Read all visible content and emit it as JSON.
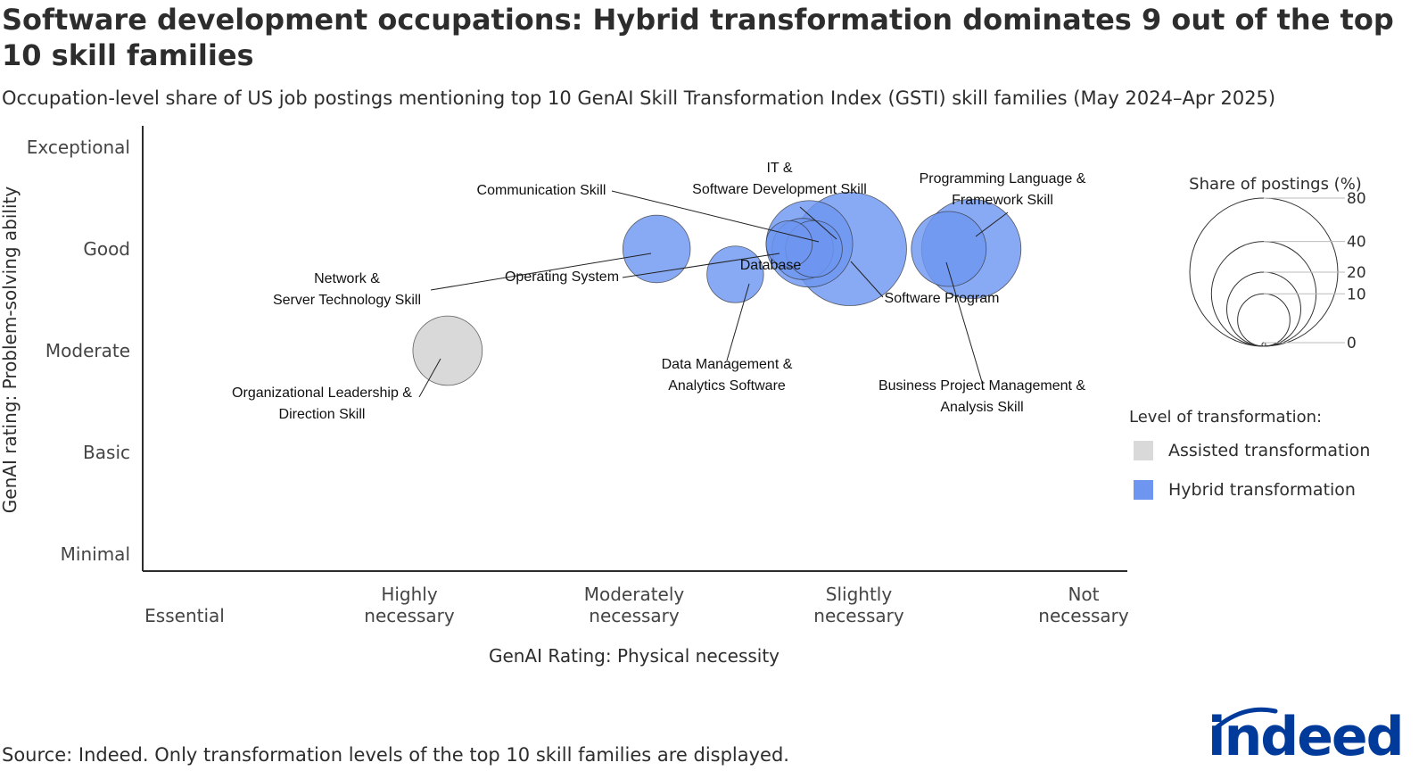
{
  "header": {
    "title": "Software development occupations: Hybrid transformation dominates 9 out of the top 10 skill families",
    "subtitle": "Occupation-level share of US job postings mentioning top 10 GenAI Skill Transformation Index (GSTI) skill families (May 2024–Apr 2025)"
  },
  "footer": {
    "source": "Source: Indeed. Only transformation levels of the top 10 skill families are displayed.",
    "logo_text": "indeed"
  },
  "colors": {
    "assisted": "#d9d9d9",
    "hybrid": "#6e96f0",
    "axis": "#2d2d2d",
    "logo": "#003a9b"
  },
  "chart_data": {
    "type": "scatter",
    "xlabel": "GenAI Rating: Physical necessity",
    "ylabel": "GenAI rating: Problem-solving ability",
    "x_ticks": [
      {
        "value": 1,
        "lines": [
          "Essential"
        ]
      },
      {
        "value": 2,
        "lines": [
          "Highly",
          "necessary"
        ]
      },
      {
        "value": 3,
        "lines": [
          "Moderately",
          "necessary"
        ]
      },
      {
        "value": 4,
        "lines": [
          "Slightly",
          "necessary"
        ]
      },
      {
        "value": 5,
        "lines": [
          "Not",
          "necessary"
        ]
      }
    ],
    "y_ticks": [
      {
        "value": 1,
        "label": "Minimal"
      },
      {
        "value": 2,
        "label": "Basic"
      },
      {
        "value": 3,
        "label": "Moderate"
      },
      {
        "value": 4,
        "label": "Good"
      },
      {
        "value": 5,
        "label": "Exceptional"
      }
    ],
    "xlim": [
      0.95,
      5.2
    ],
    "ylim": [
      0.8,
      5.2
    ],
    "points": [
      {
        "name": "Organizational Leadership & Direction Skill",
        "label_lines": [
          "Organizational Leadership &",
          "Direction Skill"
        ],
        "x": 2.17,
        "y": 3.0,
        "size": 18,
        "level": "Assisted transformation"
      },
      {
        "name": "Network & Server Technology Skill",
        "label_lines": [
          "Network &",
          "Server Technology Skill"
        ],
        "x": 3.1,
        "y": 4.0,
        "size": 17,
        "level": "Hybrid transformation"
      },
      {
        "name": "Data Management & Analytics Software",
        "label_lines": [
          "Data Management &",
          "Analytics Software"
        ],
        "x": 3.45,
        "y": 3.75,
        "size": 12,
        "level": "Hybrid transformation"
      },
      {
        "name": "Operating System",
        "label_lines": [
          "Operating System"
        ],
        "x": 3.69,
        "y": 4.05,
        "size": 8,
        "level": "Hybrid transformation"
      },
      {
        "name": "Communication Skill",
        "label_lines": [
          "Communication Skill"
        ],
        "x": 3.75,
        "y": 4.0,
        "size": 14,
        "level": "Hybrid transformation"
      },
      {
        "name": "Database",
        "label_lines": [
          "Database"
        ],
        "x": 3.8,
        "y": 4.0,
        "size": 12,
        "level": "Hybrid transformation"
      },
      {
        "name": "IT & Software Development Skill",
        "label_lines": [
          "IT &",
          "Software Development Skill"
        ],
        "x": 3.78,
        "y": 4.05,
        "size": 28,
        "level": "Hybrid transformation"
      },
      {
        "name": "Software Program",
        "label_lines": [
          "Software Program"
        ],
        "x": 3.96,
        "y": 4.0,
        "size": 48,
        "level": "Hybrid transformation"
      },
      {
        "name": "Business Project Management & Analysis Skill",
        "label_lines": [
          "Business Project Management &",
          "Analysis Skill"
        ],
        "x": 4.4,
        "y": 4.0,
        "size": 21,
        "level": "Hybrid transformation"
      },
      {
        "name": "Programming Language & Framework Skill",
        "label_lines": [
          "Programming Language &",
          "Framework Skill"
        ],
        "x": 4.5,
        "y": 4.0,
        "size": 37,
        "level": "Hybrid transformation"
      }
    ],
    "size_legend": {
      "title": "Share of postings (%)",
      "values": [
        80,
        40,
        20,
        10,
        0
      ]
    },
    "color_legend": {
      "title": "Level of transformation:",
      "entries": [
        {
          "label": "Assisted transformation",
          "color": "#d9d9d9"
        },
        {
          "label": "Hybrid transformation",
          "color": "#6e96f0"
        }
      ]
    }
  }
}
